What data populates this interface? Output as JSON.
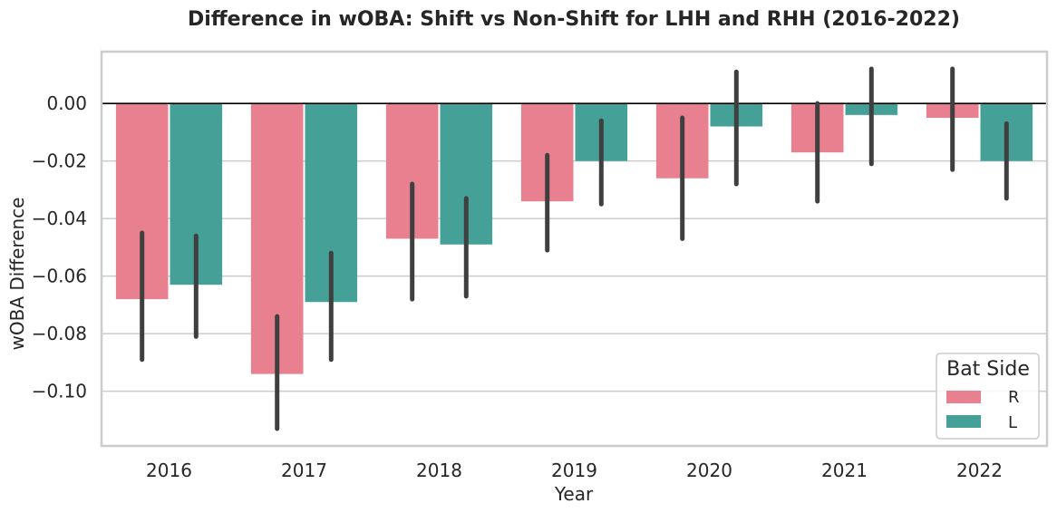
{
  "chart_data": {
    "type": "bar",
    "title": "Difference in wOBA: Shift vs Non-Shift for LHH and RHH (2016-2022)",
    "xlabel": "Year",
    "ylabel": "wOBA Difference",
    "categories": [
      "2016",
      "2017",
      "2018",
      "2019",
      "2020",
      "2021",
      "2022"
    ],
    "series": [
      {
        "name": "R",
        "color": "#e8808f",
        "values": [
          -0.068,
          -0.094,
          -0.047,
          -0.034,
          -0.026,
          -0.017,
          -0.005
        ],
        "ci_low": [
          -0.089,
          -0.113,
          -0.068,
          -0.051,
          -0.047,
          -0.034,
          -0.023
        ],
        "ci_high": [
          -0.045,
          -0.074,
          -0.028,
          -0.018,
          -0.005,
          0.0,
          0.012
        ]
      },
      {
        "name": "L",
        "color": "#45a098",
        "values": [
          -0.063,
          -0.069,
          -0.049,
          -0.02,
          -0.008,
          -0.004,
          -0.02
        ],
        "ci_low": [
          -0.081,
          -0.089,
          -0.067,
          -0.035,
          -0.028,
          -0.021,
          -0.033
        ],
        "ci_high": [
          -0.046,
          -0.052,
          -0.033,
          -0.006,
          0.011,
          0.012,
          -0.007
        ]
      }
    ],
    "yticks": [
      "0.00",
      "−0.02",
      "−0.04",
      "−0.06",
      "−0.08",
      "−0.10"
    ],
    "ytick_values": [
      0.0,
      -0.02,
      -0.04,
      -0.06,
      -0.08,
      -0.1
    ],
    "ylim": [
      -0.119,
      0.018
    ],
    "grid": "horizontal",
    "legend": {
      "title": "Bat Side",
      "position": "bottom-right"
    }
  }
}
